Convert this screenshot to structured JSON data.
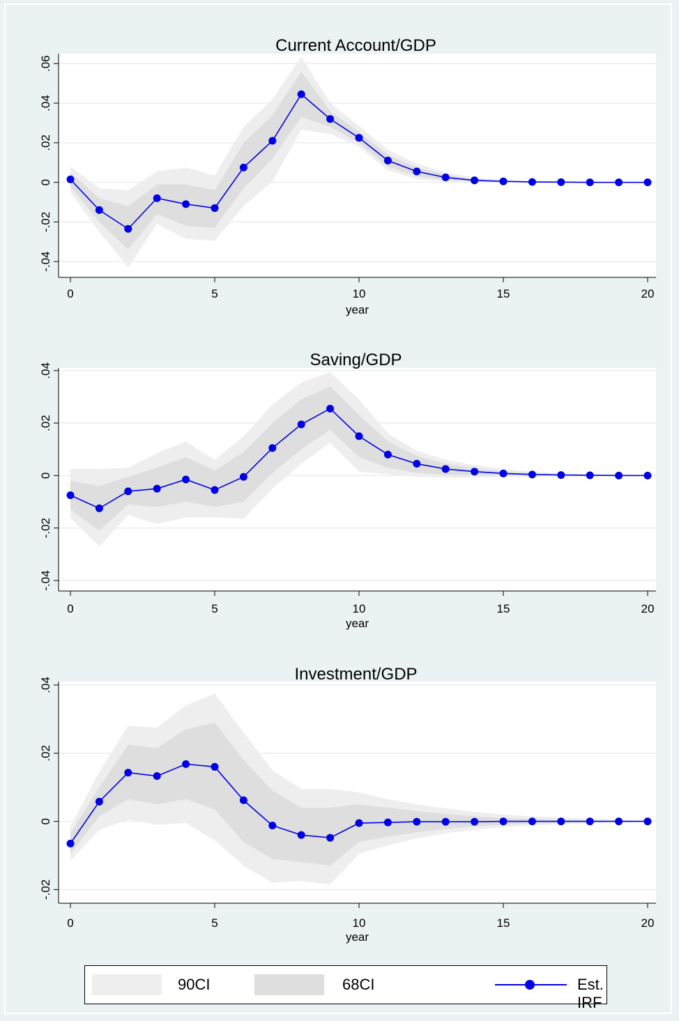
{
  "colors": {
    "background": "#eaf2f3",
    "plot_area": "#ffffff",
    "ci90": "#eeeeee",
    "ci68": "#dedede",
    "line": "#0000e6",
    "grid": "#e8eef0"
  },
  "legend": {
    "ci90": "90CI",
    "ci68": "68CI",
    "irf": "Est. IRF"
  },
  "chart_data": [
    {
      "type": "line",
      "title": "Current Account/GDP",
      "xlabel": "year",
      "ylabel": "",
      "x": [
        0,
        1,
        2,
        3,
        4,
        5,
        6,
        7,
        8,
        9,
        10,
        11,
        12,
        13,
        14,
        15,
        16,
        17,
        18,
        19,
        20
      ],
      "xticks": [
        0,
        5,
        10,
        15,
        20
      ],
      "xtick_labels": [
        "0",
        "5",
        "10",
        "15",
        "20"
      ],
      "yticks": [
        -0.04,
        -0.02,
        0,
        0.02,
        0.04,
        0.06
      ],
      "ytick_labels": [
        "-.04",
        "-.02",
        "0",
        ".02",
        ".04",
        ".06"
      ],
      "ylim": [
        -0.048,
        0.065
      ],
      "grid": true,
      "series": [
        {
          "name": "Est. IRF",
          "values": [
            0.0015,
            -0.014,
            -0.0235,
            -0.008,
            -0.011,
            -0.013,
            0.0075,
            0.021,
            0.0445,
            0.032,
            0.0225,
            0.011,
            0.0055,
            0.0025,
            0.001,
            0.0005,
            0.0002,
            0.0001,
            0.0,
            0.0,
            0.0
          ]
        },
        {
          "name": "68CI",
          "lower": [
            -0.002,
            -0.02,
            -0.034,
            -0.016,
            -0.022,
            -0.023,
            -0.003,
            0.012,
            0.033,
            0.028,
            0.02,
            0.008,
            0.003,
            0.0012,
            0.0004,
            0.0002,
            0.0,
            0.0,
            0.0,
            0.0,
            0.0
          ],
          "upper": [
            0.005,
            -0.008,
            -0.012,
            -0.001,
            -0.001,
            -0.004,
            0.02,
            0.034,
            0.056,
            0.036,
            0.0255,
            0.014,
            0.0075,
            0.0038,
            0.0016,
            0.0008,
            0.0004,
            0.0002,
            0.0001,
            0.0,
            0.0
          ]
        },
        {
          "name": "90CI",
          "lower": [
            -0.005,
            -0.025,
            -0.043,
            -0.021,
            -0.0285,
            -0.0295,
            -0.012,
            0.0005,
            0.0265,
            0.0245,
            0.018,
            0.006,
            0.0015,
            0.0005,
            0.0001,
            0.0,
            0.0,
            0.0,
            0.0,
            0.0,
            0.0
          ],
          "upper": [
            0.008,
            -0.003,
            -0.004,
            0.0055,
            0.0075,
            0.0035,
            0.028,
            0.042,
            0.0635,
            0.04,
            0.0285,
            0.0165,
            0.0095,
            0.005,
            0.0025,
            0.0013,
            0.0007,
            0.0004,
            0.0002,
            0.0001,
            0.0
          ]
        }
      ]
    },
    {
      "type": "line",
      "title": "Saving/GDP",
      "xlabel": "year",
      "ylabel": "",
      "x": [
        0,
        1,
        2,
        3,
        4,
        5,
        6,
        7,
        8,
        9,
        10,
        11,
        12,
        13,
        14,
        15,
        16,
        17,
        18,
        19,
        20
      ],
      "xticks": [
        0,
        5,
        10,
        15,
        20
      ],
      "xtick_labels": [
        "0",
        "5",
        "10",
        "15",
        "20"
      ],
      "yticks": [
        -0.04,
        -0.02,
        0,
        0.02,
        0.04
      ],
      "ytick_labels": [
        "-.04",
        "-.02",
        "0",
        ".02",
        ".04"
      ],
      "ylim": [
        -0.044,
        0.041
      ],
      "grid": true,
      "series": [
        {
          "name": "Est. IRF",
          "values": [
            -0.0075,
            -0.0125,
            -0.006,
            -0.005,
            -0.0015,
            -0.0055,
            -0.0005,
            0.0105,
            0.0195,
            0.0255,
            0.015,
            0.008,
            0.0045,
            0.0025,
            0.0015,
            0.0008,
            0.0004,
            0.0002,
            0.0001,
            0.0,
            0.0
          ]
        },
        {
          "name": "68CI",
          "lower": [
            -0.013,
            -0.021,
            -0.011,
            -0.012,
            -0.01,
            -0.012,
            -0.01,
            0.001,
            0.01,
            0.0175,
            0.007,
            0.003,
            0.001,
            0.0003,
            0.0001,
            0.0,
            0.0,
            0.0,
            0.0,
            0.0,
            0.0
          ],
          "upper": [
            -0.002,
            -0.004,
            -0.0005,
            0.003,
            0.007,
            0.002,
            0.009,
            0.02,
            0.029,
            0.034,
            0.023,
            0.013,
            0.0075,
            0.0045,
            0.0028,
            0.0016,
            0.0009,
            0.0005,
            0.0003,
            0.0001,
            0.0
          ]
        },
        {
          "name": "90CI",
          "lower": [
            -0.016,
            -0.027,
            -0.015,
            -0.0185,
            -0.016,
            -0.016,
            -0.0165,
            -0.005,
            0.0045,
            0.0125,
            0.0015,
            0.0005,
            -0.0005,
            -0.0008,
            -0.0008,
            -0.0006,
            -0.0004,
            -0.0003,
            -0.0002,
            -0.0001,
            0.0
          ],
          "upper": [
            0.0025,
            0.0025,
            0.003,
            0.0085,
            0.013,
            0.006,
            0.015,
            0.027,
            0.0355,
            0.0395,
            0.029,
            0.016,
            0.0095,
            0.006,
            0.004,
            0.0025,
            0.0015,
            0.0009,
            0.0005,
            0.0003,
            0.0002
          ]
        }
      ]
    },
    {
      "type": "line",
      "title": "Investment/GDP",
      "xlabel": "year",
      "ylabel": "",
      "x": [
        0,
        1,
        2,
        3,
        4,
        5,
        6,
        7,
        8,
        9,
        10,
        11,
        12,
        13,
        14,
        15,
        16,
        17,
        18,
        19,
        20
      ],
      "xticks": [
        0,
        5,
        10,
        15,
        20
      ],
      "xtick_labels": [
        "0",
        "5",
        "10",
        "15",
        "20"
      ],
      "yticks": [
        -0.02,
        0,
        0.02,
        0.04
      ],
      "ytick_labels": [
        "-.02",
        "0",
        ".02",
        ".04"
      ],
      "ylim": [
        -0.024,
        0.041
      ],
      "grid": true,
      "series": [
        {
          "name": "Est. IRF",
          "values": [
            -0.0065,
            0.0058,
            0.0143,
            0.0133,
            0.0168,
            0.016,
            0.0062,
            -0.0012,
            -0.004,
            -0.0048,
            -0.0005,
            -0.0003,
            -0.0001,
            -0.0001,
            -0.0001,
            0.0,
            0.0,
            0.0,
            0.0,
            0.0,
            0.0
          ]
        },
        {
          "name": "68CI",
          "lower": [
            -0.0095,
            0.0015,
            0.0065,
            0.005,
            0.0065,
            0.0035,
            -0.006,
            -0.011,
            -0.012,
            -0.013,
            -0.006,
            -0.0045,
            -0.0032,
            -0.0022,
            -0.0015,
            -0.001,
            -0.0006,
            -0.0004,
            -0.0002,
            -0.0001,
            0.0
          ],
          "upper": [
            -0.0035,
            0.01,
            0.0225,
            0.0215,
            0.027,
            0.029,
            0.018,
            0.009,
            0.004,
            0.004,
            0.005,
            0.004,
            0.003,
            0.0022,
            0.0015,
            0.001,
            0.0007,
            0.0005,
            0.0003,
            0.0002,
            0.0001
          ]
        },
        {
          "name": "90CI",
          "lower": [
            -0.0115,
            -0.0025,
            0.0005,
            -0.001,
            -0.0005,
            -0.0055,
            -0.013,
            -0.018,
            -0.0175,
            -0.0185,
            -0.0095,
            -0.007,
            -0.005,
            -0.0035,
            -0.0025,
            -0.0017,
            -0.0012,
            -0.0008,
            -0.0005,
            -0.0003,
            -0.0001
          ],
          "upper": [
            -0.0015,
            0.0145,
            0.028,
            0.0275,
            0.034,
            0.0375,
            0.026,
            0.015,
            0.0095,
            0.0095,
            0.0085,
            0.0065,
            0.005,
            0.0038,
            0.0028,
            0.002,
            0.0015,
            0.0011,
            0.0008,
            0.0005,
            0.0003
          ]
        }
      ]
    }
  ]
}
